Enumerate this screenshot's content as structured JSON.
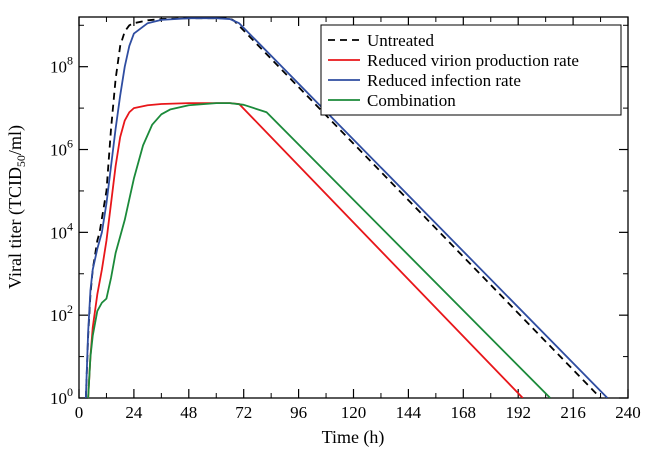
{
  "chart_data": {
    "type": "line",
    "xlabel": "Time (h)",
    "ylabel": {
      "prefix": "Viral titer (TCID",
      "subscript": "50",
      "suffix": "/ml)"
    },
    "xlim": [
      0,
      240
    ],
    "ylim_log10": [
      0,
      9.2
    ],
    "y_scale": "log",
    "x_ticks": [
      0,
      24,
      48,
      72,
      96,
      120,
      144,
      168,
      192,
      216,
      240
    ],
    "y_ticks": [
      {
        "base": "10",
        "exp": "0"
      },
      {
        "base": "10",
        "exp": "2"
      },
      {
        "base": "10",
        "exp": "4"
      },
      {
        "base": "10",
        "exp": "6"
      },
      {
        "base": "10",
        "exp": "8"
      }
    ],
    "legend_position": "top-right",
    "series": [
      {
        "name": "Untreated",
        "color": "#000000",
        "dash": "dashed",
        "x": [
          3,
          4,
          5,
          6,
          8,
          9,
          12,
          14,
          16,
          18,
          20,
          22,
          24,
          30,
          36,
          48,
          60,
          66,
          68,
          228
        ],
        "log10_y": [
          0,
          1.5,
          2.5,
          3.1,
          3.8,
          4.0,
          5.0,
          6.5,
          7.7,
          8.5,
          8.85,
          9.0,
          9.05,
          9.12,
          9.15,
          9.17,
          9.17,
          9.17,
          9.1,
          0
        ]
      },
      {
        "name": "Reduced virion production rate",
        "color": "#e8161a",
        "dash": "solid",
        "x": [
          4,
          5,
          6,
          8,
          10,
          12,
          14,
          16,
          18,
          20,
          22,
          24,
          30,
          36,
          48,
          60,
          66,
          70,
          194
        ],
        "log10_y": [
          0,
          1.0,
          1.7,
          2.5,
          3.1,
          3.8,
          4.7,
          5.6,
          6.3,
          6.7,
          6.9,
          7.0,
          7.07,
          7.1,
          7.12,
          7.12,
          7.12,
          7.1,
          0
        ]
      },
      {
        "name": "Reduced infection rate",
        "color": "#2f4da1",
        "dash": "solid",
        "x": [
          3,
          4,
          5,
          6,
          8,
          10,
          12,
          14,
          16,
          18,
          20,
          22,
          24,
          30,
          36,
          48,
          60,
          66,
          70,
          231
        ],
        "log10_y": [
          0,
          1.6,
          2.6,
          3.1,
          3.6,
          4.0,
          4.7,
          5.6,
          6.5,
          7.3,
          8.0,
          8.5,
          8.8,
          9.05,
          9.13,
          9.17,
          9.17,
          9.15,
          9.05,
          0
        ]
      },
      {
        "name": "Combination",
        "color": "#1b8a3a",
        "dash": "solid",
        "x": [
          4,
          5,
          6,
          8,
          10,
          12,
          14,
          16,
          18,
          20,
          22,
          24,
          28,
          32,
          36,
          40,
          48,
          60,
          66,
          72,
          82,
          206
        ],
        "log10_y": [
          0,
          1.0,
          1.5,
          2.1,
          2.3,
          2.4,
          2.9,
          3.5,
          3.9,
          4.3,
          4.8,
          5.3,
          6.1,
          6.6,
          6.85,
          6.97,
          7.07,
          7.12,
          7.12,
          7.08,
          6.9,
          0
        ]
      }
    ]
  }
}
